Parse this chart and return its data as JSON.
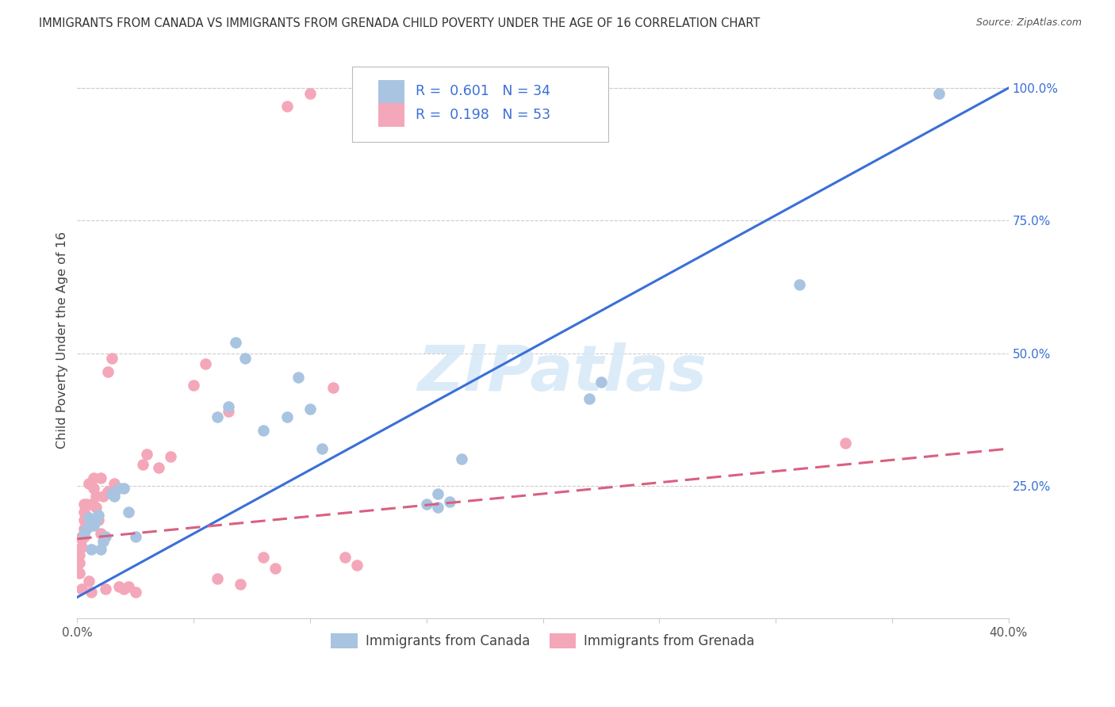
{
  "title": "IMMIGRANTS FROM CANADA VS IMMIGRANTS FROM GRENADA CHILD POVERTY UNDER THE AGE OF 16 CORRELATION CHART",
  "source": "Source: ZipAtlas.com",
  "ylabel": "Child Poverty Under the Age of 16",
  "xlim": [
    0.0,
    0.4
  ],
  "ylim": [
    0.0,
    1.05
  ],
  "xticks": [
    0.0,
    0.05,
    0.1,
    0.15,
    0.2,
    0.25,
    0.3,
    0.35,
    0.4
  ],
  "xticklabels": [
    "0.0%",
    "",
    "",
    "",
    "",
    "",
    "",
    "",
    "40.0%"
  ],
  "yticks_right": [
    0.25,
    0.5,
    0.75,
    1.0
  ],
  "yticklabels_right": [
    "25.0%",
    "50.0%",
    "75.0%",
    "100.0%"
  ],
  "canada_R": 0.601,
  "canada_N": 34,
  "grenada_R": 0.198,
  "grenada_N": 53,
  "canada_color": "#a8c4e0",
  "grenada_color": "#f4a7b9",
  "canada_line_color": "#3a6fd8",
  "grenada_line_color": "#d96080",
  "legend_label_canada": "Immigrants from Canada",
  "legend_label_grenada": "Immigrants from Grenada",
  "watermark": "ZIPatlas",
  "canada_line_x0": 0.0,
  "canada_line_y0": 0.04,
  "canada_line_x1": 0.4,
  "canada_line_y1": 1.0,
  "grenada_line_x0": 0.0,
  "grenada_line_y0": 0.15,
  "grenada_line_x1": 0.4,
  "grenada_line_y1": 0.32,
  "canada_x": [
    0.003,
    0.004,
    0.005,
    0.006,
    0.007,
    0.008,
    0.009,
    0.01,
    0.011,
    0.012,
    0.015,
    0.016,
    0.018,
    0.02,
    0.022,
    0.025,
    0.06,
    0.065,
    0.068,
    0.072,
    0.08,
    0.09,
    0.095,
    0.1,
    0.105,
    0.155,
    0.16,
    0.165,
    0.22,
    0.225,
    0.15,
    0.155,
    0.31,
    0.37
  ],
  "canada_y": [
    0.16,
    0.17,
    0.19,
    0.13,
    0.175,
    0.185,
    0.195,
    0.13,
    0.145,
    0.155,
    0.235,
    0.23,
    0.245,
    0.245,
    0.2,
    0.155,
    0.38,
    0.4,
    0.52,
    0.49,
    0.355,
    0.38,
    0.455,
    0.395,
    0.32,
    0.235,
    0.22,
    0.3,
    0.415,
    0.445,
    0.215,
    0.21,
    0.63,
    0.99
  ],
  "grenada_x": [
    0.001,
    0.001,
    0.001,
    0.002,
    0.002,
    0.002,
    0.002,
    0.003,
    0.003,
    0.003,
    0.003,
    0.003,
    0.004,
    0.004,
    0.005,
    0.005,
    0.006,
    0.006,
    0.007,
    0.007,
    0.008,
    0.008,
    0.009,
    0.01,
    0.01,
    0.011,
    0.012,
    0.013,
    0.015,
    0.016,
    0.018,
    0.02,
    0.022,
    0.025,
    0.028,
    0.03,
    0.035,
    0.04,
    0.05,
    0.055,
    0.06,
    0.065,
    0.07,
    0.08,
    0.085,
    0.09,
    0.1,
    0.11,
    0.115,
    0.12,
    0.013,
    0.015,
    0.33
  ],
  "grenada_y": [
    0.085,
    0.105,
    0.12,
    0.15,
    0.135,
    0.155,
    0.055,
    0.155,
    0.17,
    0.185,
    0.2,
    0.215,
    0.175,
    0.215,
    0.255,
    0.07,
    0.215,
    0.05,
    0.245,
    0.265,
    0.21,
    0.23,
    0.185,
    0.265,
    0.16,
    0.23,
    0.055,
    0.24,
    0.24,
    0.255,
    0.06,
    0.055,
    0.06,
    0.05,
    0.29,
    0.31,
    0.285,
    0.305,
    0.44,
    0.48,
    0.075,
    0.39,
    0.065,
    0.115,
    0.095,
    0.965,
    0.99,
    0.435,
    0.115,
    0.1,
    0.465,
    0.49,
    0.33
  ]
}
